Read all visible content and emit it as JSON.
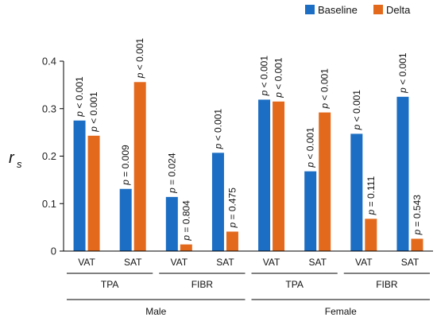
{
  "chart_data": {
    "type": "bar",
    "ylabel_main": "r",
    "ylabel_sub": "s",
    "ylim": [
      0,
      0.4
    ],
    "yticks": [
      "0",
      "0.1",
      "0.2",
      "0.3",
      "0.4"
    ],
    "ytick_values": [
      0,
      0.1,
      0.2,
      0.3,
      0.4
    ],
    "legend": {
      "position": "top-right"
    },
    "series": [
      {
        "name": "Baseline",
        "color": "#1b6ec4"
      },
      {
        "name": "Delta",
        "color": "#e36a1d"
      }
    ],
    "groups": [
      {
        "sex": "Male",
        "measure": "TPA",
        "tissue": "VAT",
        "baseline": 0.275,
        "delta": 0.243,
        "p_baseline": "p < 0.001",
        "p_delta": "p < 0.001"
      },
      {
        "sex": "Male",
        "measure": "TPA",
        "tissue": "SAT",
        "baseline": 0.131,
        "delta": 0.356,
        "p_baseline": "p = 0.009",
        "p_delta": "p < 0.001"
      },
      {
        "sex": "Male",
        "measure": "FIBR",
        "tissue": "VAT",
        "baseline": 0.114,
        "delta": 0.014,
        "p_baseline": "p = 0.024",
        "p_delta": "p = 0.804"
      },
      {
        "sex": "Male",
        "measure": "FIBR",
        "tissue": "SAT",
        "baseline": 0.207,
        "delta": 0.041,
        "p_baseline": "p < 0.001",
        "p_delta": "p = 0.475"
      },
      {
        "sex": "Female",
        "measure": "TPA",
        "tissue": "VAT",
        "baseline": 0.319,
        "delta": 0.315,
        "p_baseline": "p < 0.001",
        "p_delta": "p < 0.001"
      },
      {
        "sex": "Female",
        "measure": "TPA",
        "tissue": "SAT",
        "baseline": 0.168,
        "delta": 0.292,
        "p_baseline": "p < 0.001",
        "p_delta": "p < 0.001"
      },
      {
        "sex": "Female",
        "measure": "FIBR",
        "tissue": "VAT",
        "baseline": 0.247,
        "delta": 0.068,
        "p_baseline": "p < 0.001",
        "p_delta": "p = 0.111"
      },
      {
        "sex": "Female",
        "measure": "FIBR",
        "tissue": "SAT",
        "baseline": 0.325,
        "delta": 0.026,
        "p_baseline": "p < 0.001",
        "p_delta": "p = 0.543"
      }
    ],
    "measure_labels": [
      "TPA",
      "FIBR",
      "TPA",
      "FIBR"
    ],
    "sex_labels": [
      "Male",
      "Female"
    ]
  }
}
